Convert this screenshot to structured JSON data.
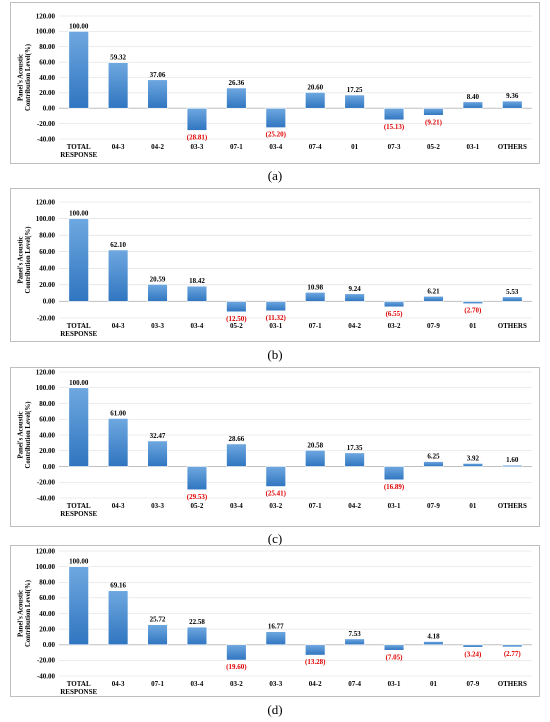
{
  "figure": {
    "colors": {
      "bar_top": "#6fa8e0",
      "bar_bottom": "#2f75c0",
      "positive_label": "#000000",
      "negative_label": "#e00000",
      "grid": "#d9d9d9",
      "baseline": "#bfbfbf"
    }
  },
  "chart_data": [
    {
      "type": "bar",
      "subtype": "waterfall",
      "caption": "(a)",
      "ylabel": "Panel's Acoustic Contribution Level(%)",
      "ylim": [
        -40,
        120
      ],
      "yticks": [
        "120.00",
        "100.00",
        "80.00",
        "60.00",
        "40.00",
        "20.00",
        "0.00",
        "-20.00",
        "-40.00"
      ],
      "grid": true,
      "categories": [
        "TOTAL RESPONSE",
        "04-3",
        "04-2",
        "03-3",
        "07-1",
        "03-4",
        "07-4",
        "01",
        "07-3",
        "05-2",
        "03-1",
        "OTHERS"
      ],
      "values": [
        100.0,
        59.32,
        37.06,
        -28.81,
        26.36,
        -25.2,
        20.6,
        17.25,
        -15.13,
        -9.21,
        8.4,
        9.36
      ],
      "data_labels": [
        "100.00",
        "59.32",
        "37.06",
        "(28.81)",
        "26.36",
        "(25.20)",
        "20.60",
        "17.25",
        "(15.13)",
        "(9.21)",
        "8.40",
        "9.36"
      ]
    },
    {
      "type": "bar",
      "subtype": "waterfall",
      "caption": "(b)",
      "ylabel": "Panel's Acoustic Contribution Level(%)",
      "ylim": [
        -20,
        120
      ],
      "yticks": [
        "120.00",
        "100.00",
        "80.00",
        "60.00",
        "40.00",
        "20.00",
        "0.00",
        "-20.00"
      ],
      "grid": true,
      "categories": [
        "TOTAL RESPONSE",
        "04-3",
        "03-3",
        "03-4",
        "05-2",
        "03-1",
        "07-1",
        "04-2",
        "03-2",
        "07-9",
        "01",
        "OTHERS"
      ],
      "values": [
        100.0,
        62.1,
        20.59,
        18.42,
        -12.5,
        -11.32,
        10.98,
        9.24,
        -6.55,
        6.21,
        -2.7,
        5.53
      ],
      "data_labels": [
        "100.00",
        "62.10",
        "20.59",
        "18.42",
        "(12.50)",
        "(11.32)",
        "10.98",
        "9.24",
        "(6.55)",
        "6.21",
        "(2.70)",
        "5.53"
      ]
    },
    {
      "type": "bar",
      "subtype": "waterfall",
      "caption": "(c)",
      "ylabel": "Panel's Acoustic Contribution Level(%)",
      "ylim": [
        -40,
        120
      ],
      "yticks": [
        "120.00",
        "100.00",
        "80.00",
        "60.00",
        "40.00",
        "20.00",
        "0.00",
        "-20.00",
        "-40.00"
      ],
      "grid": true,
      "categories": [
        "TOTAL RESPONSE",
        "04-3",
        "03-3",
        "05-2",
        "03-4",
        "03-2",
        "07-1",
        "04-2",
        "03-1",
        "07-9",
        "01",
        "OTHERS"
      ],
      "values": [
        100.0,
        61.0,
        32.47,
        -29.53,
        28.66,
        -25.41,
        20.58,
        17.35,
        -16.89,
        6.25,
        3.92,
        1.6
      ],
      "data_labels": [
        "100.00",
        "61.00",
        "32.47",
        "(29.53)",
        "28.66",
        "(25.41)",
        "20.58",
        "17.35",
        "(16.89)",
        "6.25",
        "3.92",
        "1.60"
      ]
    },
    {
      "type": "bar",
      "subtype": "waterfall",
      "caption": "(d)",
      "ylabel": "Panel's Acoustic Contribution Level(%)",
      "ylim": [
        -40,
        120
      ],
      "yticks": [
        "120.00",
        "100.00",
        "80.00",
        "60.00",
        "40.00",
        "20.00",
        "0.00",
        "-20.00",
        "-40.00"
      ],
      "grid": true,
      "categories": [
        "TOTAL RESPONSE",
        "04-3",
        "07-1",
        "03-4",
        "03-2",
        "03-3",
        "04-2",
        "07-4",
        "03-1",
        "01",
        "07-9",
        "OTHERS"
      ],
      "values": [
        100.0,
        69.16,
        25.72,
        22.58,
        -19.6,
        16.77,
        -13.28,
        7.53,
        -7.05,
        4.18,
        -3.24,
        -2.77
      ],
      "data_labels": [
        "100.00",
        "69.16",
        "25.72",
        "22.58",
        "(19.60)",
        "16.77",
        "(13.28)",
        "7.53",
        "(7.05)",
        "4.18",
        "(3.24)",
        "(2.77)"
      ]
    }
  ]
}
